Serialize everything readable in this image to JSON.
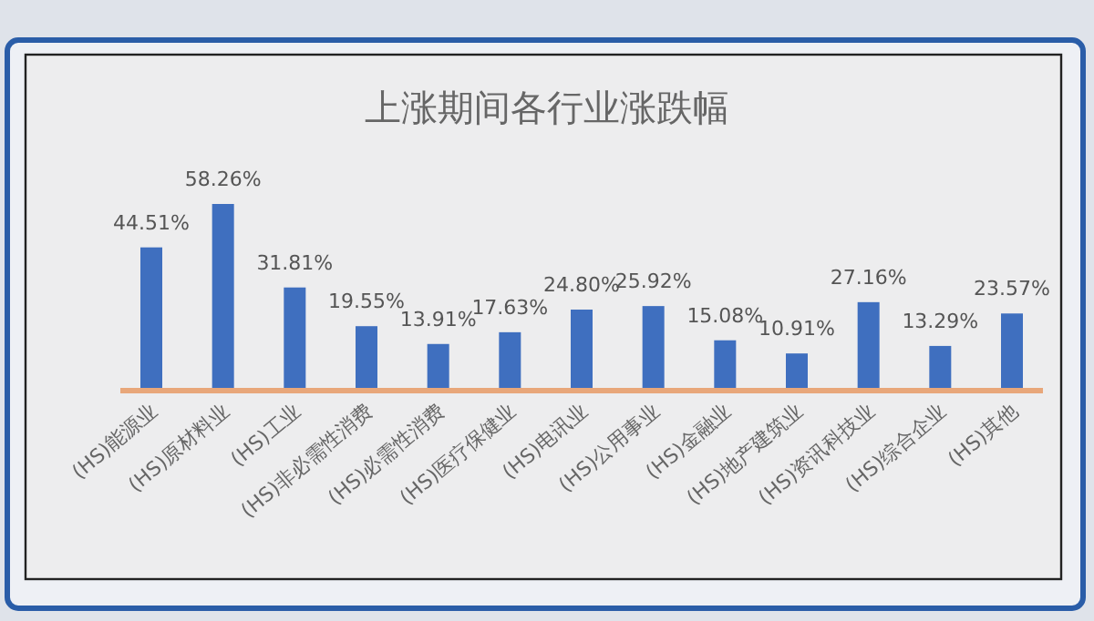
{
  "chart_data": {
    "type": "bar",
    "title": "上涨期间各行业涨跌幅",
    "categories": [
      "(HS)能源业",
      "(HS)原材料业",
      "(HS)工业",
      "(HS)非必需性消费",
      "(HS)必需性消费",
      "(HS)医疗保健业",
      "(HS)电讯业",
      "(HS)公用事业",
      "(HS)金融业",
      "(HS)地产建筑业",
      "(HS)资讯科技业",
      "(HS)综合企业",
      "(HS)其他"
    ],
    "values": [
      44.51,
      58.26,
      31.81,
      19.55,
      13.91,
      17.63,
      24.8,
      25.92,
      15.08,
      10.91,
      27.16,
      13.29,
      23.57
    ],
    "value_labels": [
      "44.51%",
      "58.26%",
      "31.81%",
      "19.55%",
      "13.91%",
      "17.63%",
      "24.80%",
      "25.92%",
      "15.08%",
      "10.91%",
      "27.16%",
      "13.29%",
      "23.57%"
    ],
    "color": "#3f6fbf"
  }
}
